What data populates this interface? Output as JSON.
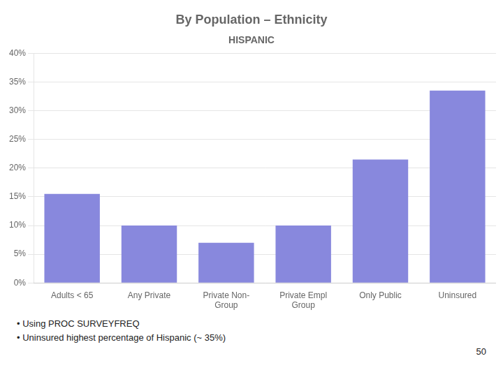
{
  "chart_data": {
    "type": "bar",
    "title": "By Population – Ethnicity",
    "subtitle": "HISPANIC",
    "categories": [
      "Adults < 65",
      "Any Private",
      "Private Non-\nGroup",
      "Private Empl\nGroup",
      "Only Public",
      "Uninsured"
    ],
    "values": [
      0.155,
      0.1,
      0.07,
      0.1,
      0.215,
      0.335
    ],
    "color": "#8888dd",
    "ylim": [
      0,
      0.4
    ],
    "yticks": [
      {
        "value": 0,
        "label": "0%"
      },
      {
        "value": 0.05,
        "label": "5%"
      },
      {
        "value": 0.1,
        "label": "10%"
      },
      {
        "value": 0.15,
        "label": "15%"
      },
      {
        "value": 0.2,
        "label": "20%"
      },
      {
        "value": 0.25,
        "label": "25%"
      },
      {
        "value": 0.3,
        "label": "30%"
      },
      {
        "value": 0.35,
        "label": "35%"
      },
      {
        "value": 0.4,
        "label": "40%"
      }
    ],
    "grid": true,
    "annotations": [
      "• Using PROC SURVEYFREQ",
      "• Uninsured highest percentage of Hispanic (~ 35%)",
      "50"
    ]
  }
}
